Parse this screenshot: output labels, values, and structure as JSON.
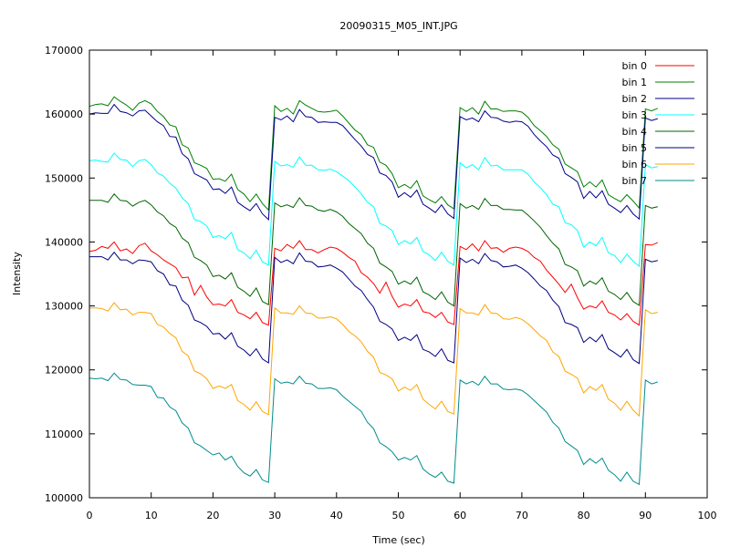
{
  "chart_data": {
    "type": "line",
    "title": "20090315_M05_INT.JPG",
    "xlabel": "Time (sec)",
    "ylabel": "Intensity",
    "xlim": [
      0,
      100
    ],
    "ylim": [
      100000,
      170000
    ],
    "x_ticks": [
      0,
      10,
      20,
      30,
      40,
      50,
      60,
      70,
      80,
      90,
      100
    ],
    "y_ticks": [
      100000,
      110000,
      120000,
      130000,
      140000,
      150000,
      160000,
      170000
    ],
    "grid": false,
    "legend_position": "top-right",
    "x": [
      0,
      1,
      2,
      3,
      4,
      5,
      6,
      7,
      8,
      9,
      10,
      11,
      12,
      13,
      14,
      15,
      16,
      17,
      18,
      19,
      20,
      21,
      22,
      23,
      24,
      25,
      26,
      27,
      28,
      29,
      30,
      31,
      32,
      33,
      34,
      35,
      36,
      37,
      38,
      39,
      40,
      41,
      42,
      43,
      44,
      45,
      46,
      47,
      48,
      49,
      50,
      51,
      52,
      53,
      54,
      55,
      56,
      57,
      58,
      59,
      60,
      61,
      62,
      63,
      64,
      65,
      66,
      67,
      68,
      69,
      70,
      71,
      72,
      73,
      74,
      75,
      76,
      77,
      78,
      79,
      80,
      81,
      82,
      83,
      84,
      85,
      86,
      87,
      88,
      89,
      90,
      91,
      92
    ],
    "series": [
      {
        "name": "bin 0",
        "color": "#ff0000",
        "values": [
          138500,
          138700,
          139300,
          139000,
          140000,
          138600,
          138900,
          138200,
          139400,
          139800,
          138600,
          138000,
          137200,
          136600,
          136000,
          134400,
          134500,
          131700,
          133200,
          131400,
          130200,
          130300,
          130000,
          131000,
          129000,
          128600,
          128000,
          129000,
          127400,
          127000,
          139000,
          138600,
          139600,
          139000,
          140200,
          138800,
          138800,
          138300,
          138800,
          139200,
          139000,
          138400,
          137600,
          137000,
          135200,
          134500,
          133500,
          132000,
          133700,
          131500,
          129800,
          130300,
          130000,
          131000,
          129100,
          128900,
          128200,
          129000,
          127500,
          127100,
          139300,
          138800,
          139700,
          138600,
          140200,
          139000,
          139100,
          138400,
          139000,
          139200,
          139000,
          138500,
          137600,
          137000,
          135600,
          134500,
          133400,
          132100,
          133400,
          131300,
          129500,
          130000,
          129700,
          130800,
          129000,
          128600,
          127800,
          128800,
          127600,
          127000,
          139600,
          139500,
          139900
        ]
      },
      {
        "name": "bin 1",
        "color": "#008000",
        "values": [
          161200,
          161500,
          161600,
          161300,
          162700,
          162000,
          161400,
          160600,
          161700,
          162100,
          161600,
          160400,
          159600,
          158300,
          158000,
          155200,
          154700,
          152400,
          152000,
          151500,
          149800,
          149900,
          149500,
          150600,
          148200,
          147500,
          146300,
          147500,
          146000,
          145000,
          161300,
          160400,
          160900,
          160000,
          162100,
          161400,
          160900,
          160400,
          160300,
          160400,
          160600,
          159700,
          158600,
          157500,
          156800,
          155200,
          154800,
          152500,
          152000,
          150700,
          148500,
          149000,
          148400,
          149600,
          147200,
          146600,
          146100,
          147100,
          145800,
          145200,
          161000,
          160400,
          161000,
          160000,
          162000,
          160800,
          160800,
          160400,
          160500,
          160500,
          160300,
          159500,
          158200,
          157400,
          156500,
          155200,
          154500,
          152200,
          151600,
          151000,
          148600,
          149400,
          148600,
          149700,
          147400,
          146800,
          146300,
          147400,
          146400,
          145300,
          160800,
          160500,
          160900
        ]
      },
      {
        "name": "bin 2",
        "color": "#00008b",
        "values": [
          160000,
          160200,
          160100,
          160100,
          161500,
          160400,
          160200,
          159700,
          160500,
          160600,
          159700,
          158800,
          158200,
          156500,
          156400,
          153800,
          153000,
          150700,
          150200,
          149700,
          148200,
          148300,
          147600,
          148600,
          146200,
          145500,
          144900,
          146000,
          144400,
          143500,
          159500,
          159100,
          159700,
          158800,
          160700,
          159600,
          159500,
          158700,
          158800,
          158700,
          158700,
          158200,
          157100,
          156000,
          155000,
          153700,
          153200,
          150800,
          150400,
          149400,
          147000,
          147700,
          147000,
          148100,
          145900,
          145300,
          144600,
          145800,
          144400,
          143700,
          159600,
          159100,
          159400,
          158800,
          160500,
          159500,
          159400,
          158900,
          158700,
          158900,
          158800,
          158100,
          156800,
          155800,
          154900,
          153600,
          153100,
          150700,
          150100,
          149400,
          146800,
          147900,
          146900,
          148000,
          145900,
          145300,
          144600,
          145700,
          144400,
          143600,
          159400,
          159000,
          159300
        ]
      },
      {
        "name": "bin 3",
        "color": "#00ffff",
        "values": [
          152700,
          152800,
          152600,
          152500,
          153900,
          152900,
          152800,
          151800,
          152700,
          152900,
          152100,
          150800,
          150300,
          149200,
          148400,
          146900,
          146000,
          143500,
          143200,
          142500,
          140700,
          141000,
          140500,
          141500,
          138800,
          138300,
          137400,
          138700,
          136900,
          136400,
          152600,
          151900,
          152100,
          151700,
          153300,
          152000,
          152000,
          151300,
          151200,
          151400,
          151000,
          150300,
          149600,
          148600,
          147500,
          146200,
          145500,
          142900,
          142500,
          141800,
          139600,
          140200,
          139700,
          140700,
          138500,
          138000,
          137100,
          138400,
          137000,
          136400,
          152400,
          151600,
          152100,
          151300,
          153200,
          151900,
          152000,
          151300,
          151300,
          151300,
          151300,
          150600,
          149400,
          148500,
          147400,
          145900,
          145500,
          143000,
          142700,
          141800,
          139200,
          140000,
          139400,
          140700,
          138300,
          137900,
          136800,
          138100,
          137000,
          136200,
          152100,
          151600,
          151800
        ]
      },
      {
        "name": "bin 4",
        "color": "#006400",
        "values": [
          146500,
          146500,
          146500,
          146200,
          147500,
          146500,
          146400,
          145600,
          146200,
          146500,
          145800,
          144700,
          144100,
          142900,
          142300,
          140600,
          139900,
          137600,
          137100,
          136400,
          134600,
          134800,
          134200,
          135200,
          132900,
          132300,
          131500,
          132800,
          130700,
          130200,
          146100,
          145500,
          145800,
          145400,
          146900,
          145700,
          145600,
          145000,
          144800,
          145100,
          144700,
          144000,
          142900,
          142100,
          141300,
          139800,
          139000,
          136700,
          136100,
          135400,
          133400,
          133900,
          133400,
          134500,
          132200,
          131700,
          131000,
          132200,
          130600,
          130000,
          146000,
          145300,
          145700,
          145100,
          146800,
          145700,
          145700,
          145100,
          145100,
          145000,
          145000,
          144200,
          143300,
          142300,
          141000,
          139800,
          138900,
          136500,
          136100,
          135500,
          133100,
          133900,
          133400,
          134400,
          132300,
          131800,
          131000,
          132100,
          130700,
          130100,
          145700,
          145300,
          145500
        ]
      },
      {
        "name": "bin 5",
        "color": "#000080",
        "values": [
          137700,
          137700,
          137700,
          137200,
          138400,
          137200,
          137200,
          136600,
          137200,
          137100,
          136900,
          135500,
          135000,
          133300,
          133100,
          130900,
          130100,
          127800,
          127400,
          126800,
          125600,
          125700,
          124800,
          125800,
          123700,
          123100,
          122200,
          123300,
          121700,
          121100,
          137600,
          136800,
          137200,
          136600,
          138300,
          137000,
          136900,
          136100,
          136200,
          136400,
          135900,
          135300,
          134200,
          133100,
          132400,
          131000,
          129800,
          127600,
          127100,
          126400,
          124600,
          125100,
          124600,
          125500,
          123200,
          122800,
          122100,
          123300,
          121500,
          121100,
          137500,
          136800,
          137300,
          136600,
          138200,
          137100,
          136900,
          136100,
          136200,
          136400,
          135900,
          135200,
          134200,
          133100,
          132400,
          130900,
          129900,
          127400,
          127100,
          126600,
          124300,
          125100,
          124400,
          125500,
          123300,
          122700,
          122000,
          123200,
          121600,
          121000,
          137300,
          136900,
          137100
        ]
      },
      {
        "name": "bin 6",
        "color": "#ffa500",
        "values": [
          129700,
          129700,
          129600,
          129200,
          130500,
          129400,
          129500,
          128600,
          129000,
          129000,
          128800,
          127100,
          126700,
          125700,
          125000,
          122900,
          122200,
          119800,
          119400,
          118600,
          117100,
          117500,
          117100,
          117700,
          115200,
          114600,
          113700,
          115000,
          113500,
          113000,
          129700,
          128900,
          128900,
          128700,
          130000,
          128900,
          128800,
          128100,
          128100,
          128300,
          128000,
          127100,
          126000,
          125300,
          124400,
          122900,
          122000,
          119600,
          119200,
          118600,
          116700,
          117300,
          116800,
          117700,
          115400,
          114600,
          113900,
          115100,
          113500,
          113100,
          129600,
          128900,
          128900,
          128600,
          130200,
          128900,
          128800,
          128000,
          127900,
          128200,
          127900,
          127200,
          126300,
          125300,
          124600,
          122800,
          122100,
          119800,
          119300,
          118700,
          116400,
          117400,
          116800,
          117700,
          115400,
          114800,
          113700,
          115100,
          113700,
          112800,
          129400,
          128800,
          129000
        ]
      },
      {
        "name": "bin 7",
        "color": "#008b8b",
        "values": [
          118700,
          118600,
          118700,
          118300,
          119500,
          118500,
          118400,
          117700,
          117600,
          117600,
          117400,
          115700,
          115600,
          114200,
          113600,
          111700,
          110900,
          108600,
          108100,
          107400,
          106700,
          107000,
          105900,
          106500,
          104900,
          103900,
          103400,
          104400,
          102800,
          102400,
          118600,
          117900,
          118100,
          117800,
          119000,
          117900,
          117800,
          117100,
          117100,
          117200,
          116900,
          115900,
          115100,
          114300,
          113500,
          111800,
          110800,
          108600,
          108000,
          107200,
          105900,
          106300,
          105900,
          106600,
          104500,
          103700,
          103200,
          104000,
          102600,
          102300,
          118400,
          117800,
          118200,
          117600,
          119000,
          117800,
          117800,
          117000,
          116900,
          117000,
          116800,
          116100,
          115200,
          114300,
          113400,
          111800,
          110900,
          108800,
          108100,
          107400,
          105200,
          106100,
          105400,
          106200,
          104300,
          103600,
          102600,
          104000,
          102600,
          102100,
          118400,
          117800,
          118100
        ]
      }
    ]
  }
}
